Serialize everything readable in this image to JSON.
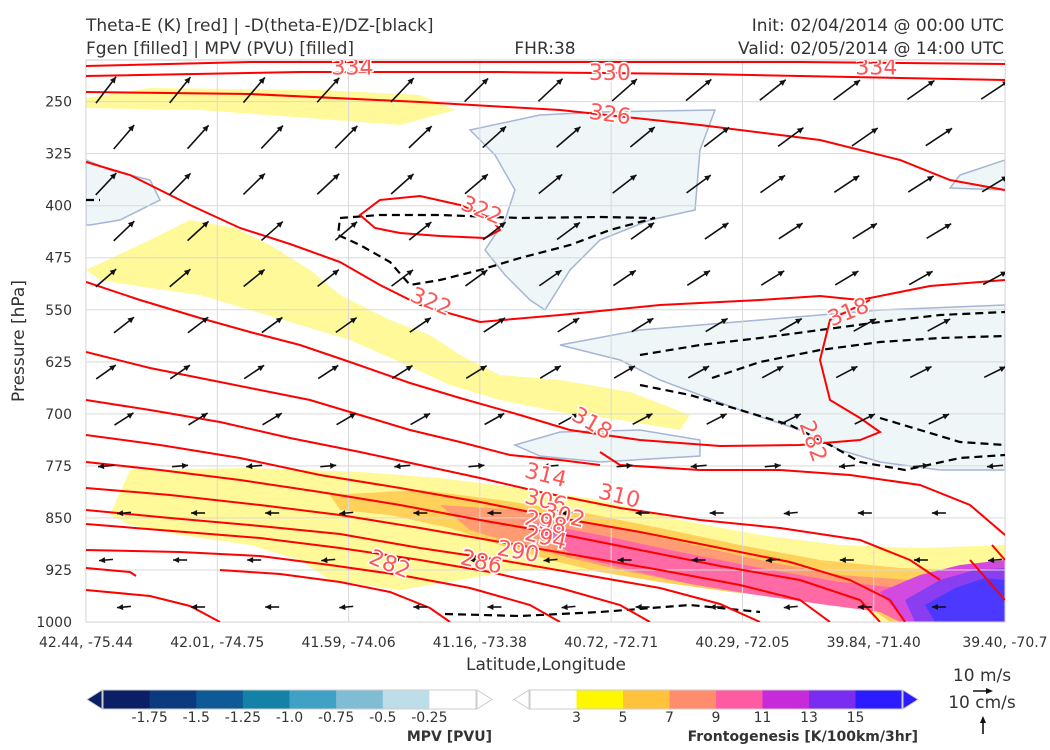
{
  "header": {
    "title_line1": "Theta-E (K) [red] | -D(theta-E)/DZ-[black]",
    "title_line2": "Fgen [filled] | MPV (PVU) [filled]",
    "fhr": "FHR:38",
    "init": "Init: 02/04/2014 @ 00:00 UTC",
    "valid": "Valid: 02/05/2014 @ 14:00 UTC"
  },
  "colors": {
    "theta_e": "#ff0000",
    "theta_e_label": "#ff5555",
    "dthetae": "#000000",
    "arrow": "#111111",
    "fgen": [
      "#ffffff",
      "#fff700",
      "#ffc23a",
      "#ff8c6a",
      "#ff5ba3",
      "#c62ad9",
      "#7a2cf0",
      "#2b1cff"
    ],
    "mpv": [
      "#0a1f66",
      "#0b3a7f",
      "#0e5a96",
      "#1482a8",
      "#3fa1c3",
      "#80bcd4",
      "#bddde8",
      "#ffffff"
    ],
    "mpv_fill": "#eef6f8",
    "mpv_edge": "#a6b6d4"
  },
  "chart_data": {
    "type": "cross-section",
    "xlabel": "Latitude,Longitude",
    "ylabel": "Pressure [hPa]",
    "x_ticks": [
      "42.44, -75.44",
      "42.01, -74.75",
      "41.59, -74.06",
      "41.16, -73.38",
      "40.72, -72.71",
      "40.29, -72.05",
      "39.84, -71.40",
      "39.40, -70.7"
    ],
    "y_ticks": [
      250,
      325,
      400,
      475,
      550,
      625,
      700,
      775,
      850,
      925,
      1000
    ],
    "ylim": [
      1000,
      190
    ],
    "grid": true,
    "theta_e_levels": [
      282,
      286,
      290,
      294,
      298,
      302,
      306,
      310,
      314,
      318,
      322,
      326,
      330,
      334
    ],
    "theta_e_labels": [
      {
        "text": "334",
        "p": 202,
        "x": 0.29,
        "rot": 0
      },
      {
        "text": "334",
        "p": 202,
        "x": 0.86,
        "rot": 0
      },
      {
        "text": "330",
        "p": 210,
        "x": 0.57,
        "rot": 0
      },
      {
        "text": "326",
        "p": 270,
        "x": 0.57,
        "rot": 8
      },
      {
        "text": "322",
        "p": 408,
        "x": 0.43,
        "rot": 22
      },
      {
        "text": "322",
        "p": 540,
        "x": 0.375,
        "rot": 22
      },
      {
        "text": "318",
        "p": 555,
        "x": 0.83,
        "rot": -22
      },
      {
        "text": "318",
        "p": 715,
        "x": 0.55,
        "rot": 30
      },
      {
        "text": "314",
        "p": 790,
        "x": 0.5,
        "rot": 14
      },
      {
        "text": "310",
        "p": 820,
        "x": 0.58,
        "rot": 14
      },
      {
        "text": "306",
        "p": 827,
        "x": 0.5,
        "rot": 14
      },
      {
        "text": "302",
        "p": 848,
        "x": 0.52,
        "rot": 14
      },
      {
        "text": "298",
        "p": 858,
        "x": 0.5,
        "rot": 14
      },
      {
        "text": "294",
        "p": 880,
        "x": 0.5,
        "rot": 14
      },
      {
        "text": "290",
        "p": 900,
        "x": 0.47,
        "rot": 10
      },
      {
        "text": "286",
        "p": 915,
        "x": 0.43,
        "rot": 14
      },
      {
        "text": "282",
        "p": 918,
        "x": 0.33,
        "rot": 22
      },
      {
        "text": "282",
        "p": 740,
        "x": 0.79,
        "rot": 70
      }
    ],
    "mpv_colorbar": {
      "label": "MPV [PVU]",
      "ticks": [
        "-1.75",
        "-1.5",
        "-1.25",
        "-1.0",
        "-0.75",
        "-0.5",
        "-0.25"
      ]
    },
    "fgen_colorbar": {
      "label": "Frontogenesis [K/100km/3hr]",
      "ticks": [
        "3",
        "5",
        "7",
        "9",
        "11",
        "13",
        "15"
      ]
    },
    "wind_reference": {
      "horizontal": "10 m/s",
      "vertical": "10 cm/s"
    }
  }
}
